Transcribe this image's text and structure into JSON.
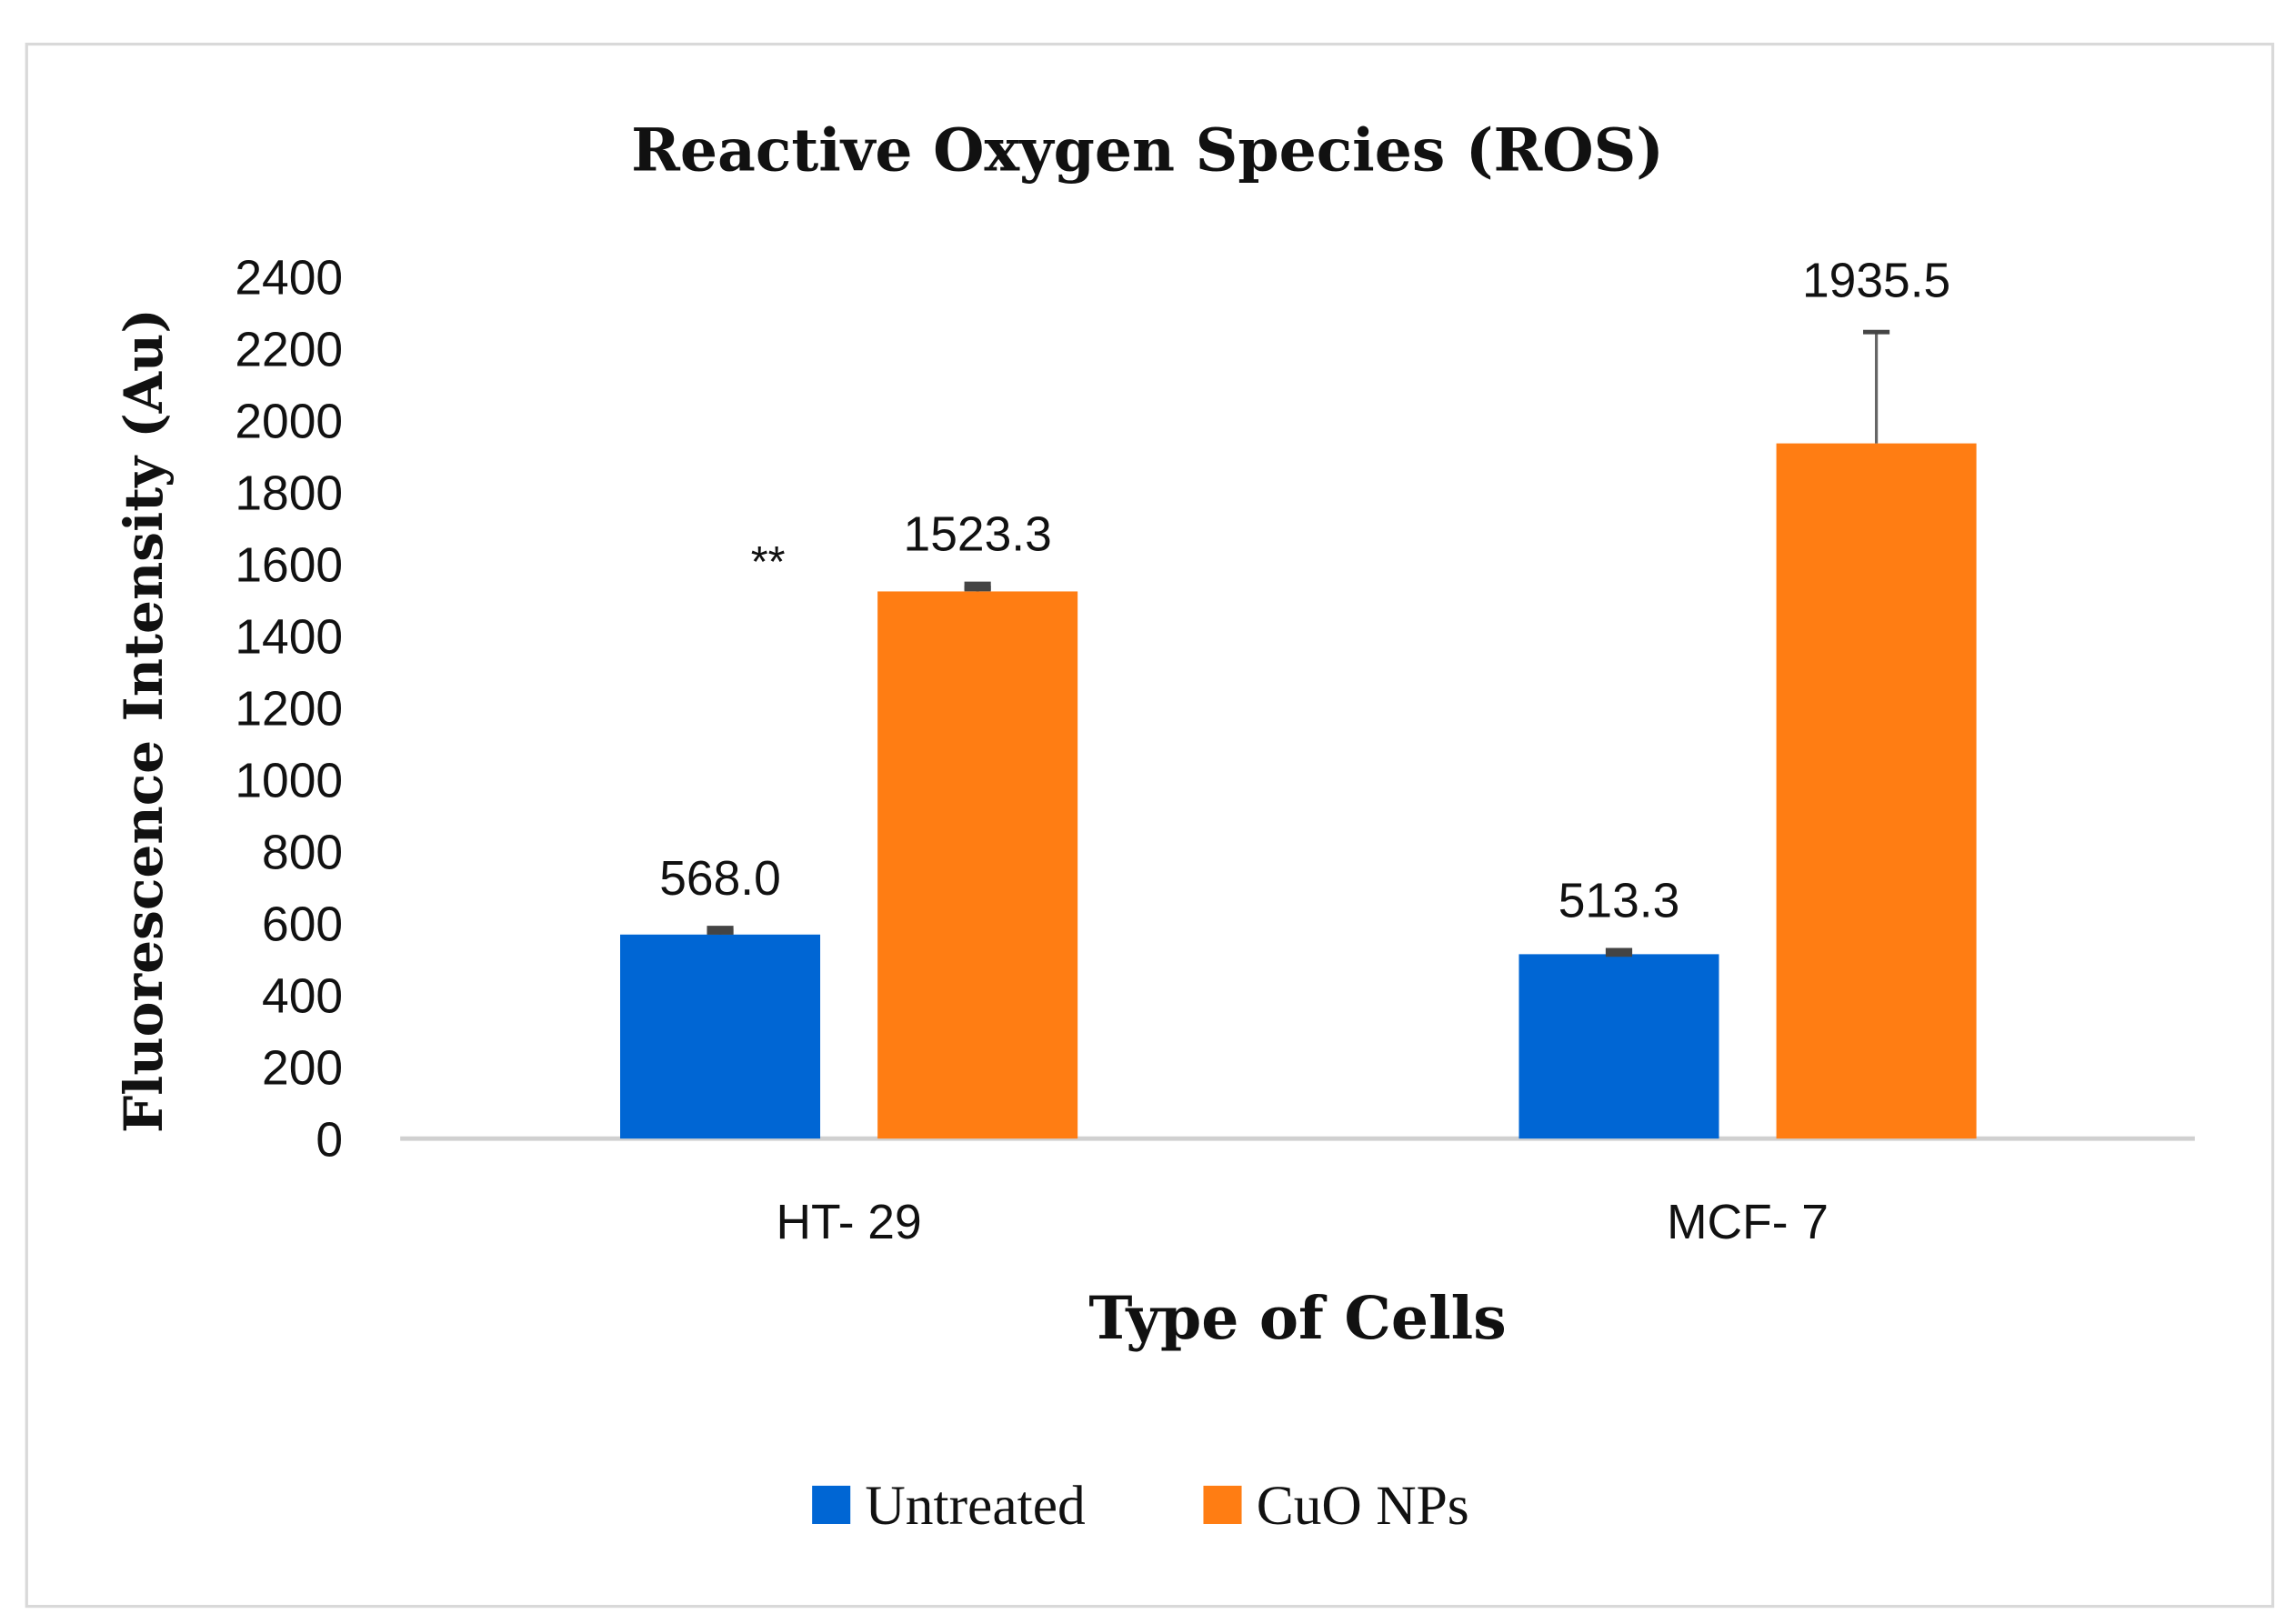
{
  "chart_data": {
    "type": "bar",
    "title": "Reactive Oxygen Species (ROS)",
    "xlabel": "Type of Cells",
    "ylabel": "Fluorescence Intensity (Au)",
    "ylim": [
      0,
      2400
    ],
    "yticks": [
      "0",
      "200",
      "400",
      "600",
      "800",
      "1000",
      "1200",
      "1400",
      "1600",
      "1800",
      "2000",
      "2200",
      "2400"
    ],
    "categories": [
      "HT- 29",
      "MCF- 7"
    ],
    "series": [
      {
        "name": "Untreated",
        "color": "#0066d4",
        "values": [
          568.0,
          513.3
        ],
        "labels": [
          "568.0",
          "513.3"
        ],
        "errors": [
          12,
          5
        ]
      },
      {
        "name": "CuO NPs",
        "color": "#ff7d13",
        "values": [
          1523.3,
          1935.5
        ],
        "labels": [
          "1523.3",
          "1935.5"
        ],
        "errors": [
          15,
          310
        ]
      }
    ],
    "annotations": [
      {
        "text": "**",
        "category": "HT- 29"
      }
    ],
    "grid": false,
    "legend": "bottom"
  }
}
